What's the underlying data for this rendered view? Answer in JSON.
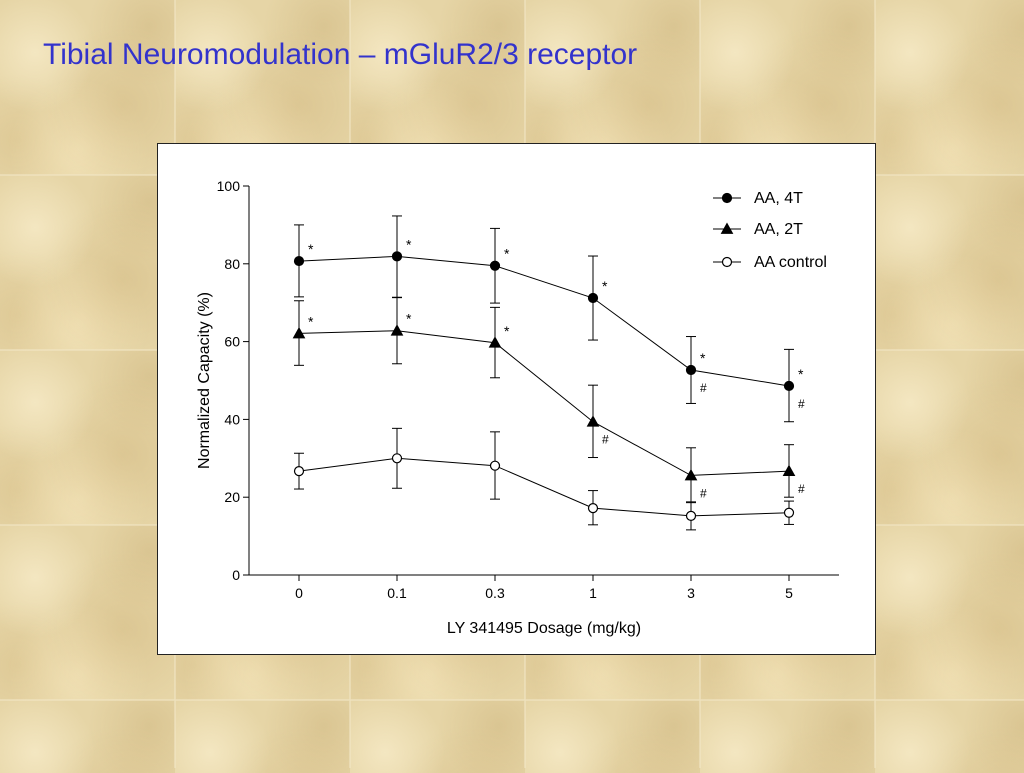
{
  "slide": {
    "title": "Tibial Neuromodulation – mGluR2/3 receptor"
  },
  "colors": {
    "title": "#3333cc",
    "background": "#e6d5a6",
    "panel": "#ffffff",
    "ink": "#000000"
  },
  "chart_data": {
    "type": "line",
    "xlabel": "LY 341495 Dosage (mg/kg)",
    "ylabel": "Normalized Capacity (%)",
    "categories": [
      "0",
      "0.1",
      "0.3",
      "1",
      "3",
      "5"
    ],
    "ylim": [
      0,
      100
    ],
    "yticks": [
      0,
      20,
      40,
      60,
      80,
      100
    ],
    "grid": false,
    "legend_position": "top-right",
    "series": [
      {
        "name": "AA, 4T",
        "marker": "filled-circle",
        "values": [
          80.7,
          81.9,
          79.5,
          71.2,
          52.7,
          48.6
        ],
        "err_low": [
          9.2,
          10.5,
          9.6,
          10.8,
          8.6,
          9.2
        ],
        "err_high": [
          9.3,
          10.4,
          9.6,
          10.8,
          8.6,
          9.4
        ],
        "annotations": [
          {
            "index": 0,
            "text": "*"
          },
          {
            "index": 1,
            "text": "*"
          },
          {
            "index": 2,
            "text": "*"
          },
          {
            "index": 3,
            "text": "*"
          },
          {
            "index": 4,
            "text": "*"
          },
          {
            "index": 5,
            "text": "*"
          },
          {
            "index": 4,
            "text": "#"
          },
          {
            "index": 5,
            "text": "#"
          }
        ]
      },
      {
        "name": "AA, 2T",
        "marker": "filled-triangle",
        "values": [
          62.1,
          62.8,
          59.7,
          39.4,
          25.6,
          26.7
        ],
        "err_low": [
          8.2,
          8.5,
          9.0,
          9.2,
          7.0,
          6.7
        ],
        "err_high": [
          8.4,
          8.5,
          9.1,
          9.4,
          7.1,
          6.8
        ],
        "annotations": [
          {
            "index": 0,
            "text": "*"
          },
          {
            "index": 1,
            "text": "*"
          },
          {
            "index": 2,
            "text": "*"
          },
          {
            "index": 3,
            "text": "#"
          },
          {
            "index": 4,
            "text": "#"
          },
          {
            "index": 5,
            "text": "#"
          }
        ]
      },
      {
        "name": "AA control",
        "marker": "open-circle",
        "values": [
          26.7,
          30.0,
          28.1,
          17.2,
          15.2,
          16.0
        ],
        "err_low": [
          4.6,
          7.7,
          8.6,
          4.3,
          3.6,
          3.0
        ],
        "err_high": [
          4.6,
          7.7,
          8.7,
          4.5,
          3.6,
          3.0
        ]
      }
    ]
  }
}
